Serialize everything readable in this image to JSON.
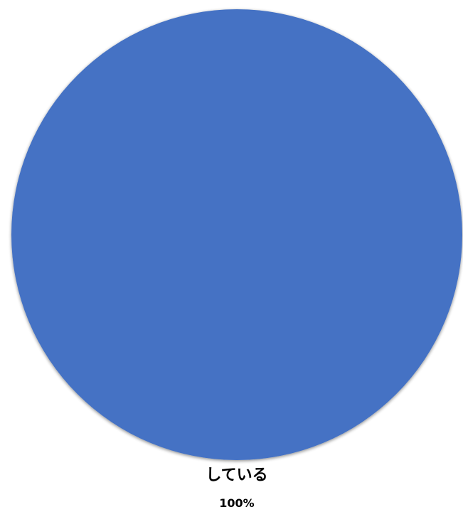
{
  "chart_data": {
    "type": "pie",
    "title": "",
    "slices": [
      {
        "label": "している",
        "value": 100,
        "percent_label": "100%",
        "color": "#4472C4"
      }
    ],
    "legend": "none"
  }
}
